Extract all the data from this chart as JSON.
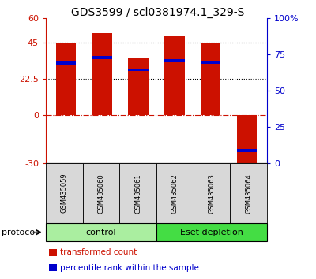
{
  "title": "GDS3599 / scl0381974.1_329-S",
  "samples": [
    "GSM435059",
    "GSM435060",
    "GSM435061",
    "GSM435062",
    "GSM435063",
    "GSM435064"
  ],
  "bar_values": [
    45.0,
    50.5,
    35.0,
    49.0,
    45.0,
    -32.0
  ],
  "blue_markers": [
    32.0,
    35.5,
    28.0,
    33.5,
    32.5,
    -22.0
  ],
  "ylim_left": [
    -30,
    60
  ],
  "yticks_left": [
    -30,
    0,
    22.5,
    45,
    60
  ],
  "ytick_labels_left": [
    "-30",
    "0",
    "22.5",
    "45",
    "60"
  ],
  "ylim_right": [
    0,
    100
  ],
  "yticks_right": [
    0,
    25,
    50,
    75,
    100
  ],
  "ytick_labels_right": [
    "0",
    "25",
    "50",
    "75",
    "100%"
  ],
  "hlines": [
    45.0,
    22.5
  ],
  "hline_zero": 0.0,
  "bar_color": "#cc1100",
  "marker_color": "#0000cc",
  "bar_width": 0.55,
  "groups": [
    {
      "label": "control",
      "n": 3,
      "color": "#aaeea0"
    },
    {
      "label": "Eset depletion",
      "n": 3,
      "color": "#44dd44"
    }
  ],
  "protocol_label": "protocol",
  "legend_items": [
    {
      "color": "#cc1100",
      "label": "transformed count"
    },
    {
      "color": "#0000cc",
      "label": "percentile rank within the sample"
    }
  ],
  "title_fontsize": 10,
  "tick_fontsize": 8,
  "sample_fontsize": 6,
  "group_fontsize": 8,
  "legend_fontsize": 7.5
}
